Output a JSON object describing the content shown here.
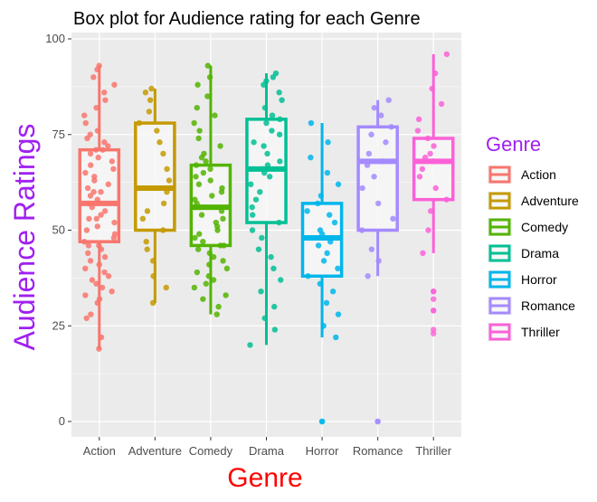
{
  "chart_data": {
    "type": "box",
    "title": "Box plot for Audience rating for each Genre",
    "xlabel": "Genre",
    "ylabel": "Audience Ratings",
    "ylim": [
      0,
      100
    ],
    "yticks": [
      0,
      25,
      50,
      75,
      100
    ],
    "categories": [
      "Action",
      "Adventure",
      "Comedy",
      "Drama",
      "Horror",
      "Romance",
      "Thriller"
    ],
    "legend": {
      "title": "Genre",
      "position": "right"
    },
    "grid": true,
    "colors": {
      "panel_bg": "#ebebeb",
      "grid": "#ffffff",
      "xlabel": "#ff0000",
      "ylabel_and_legend_title": "#a020f0",
      "box_fill": "#f7f7f7"
    },
    "series": [
      {
        "name": "Action",
        "color": "#f8766d",
        "q1": 47,
        "median": 57,
        "q3": 71,
        "whisker_low": 19,
        "whisker_high": 93,
        "outliers": [],
        "points": [
          19,
          22,
          27,
          28,
          31,
          32,
          33,
          34,
          35,
          36,
          37,
          38,
          39,
          40,
          41,
          42,
          43,
          44,
          45,
          46,
          46,
          47,
          48,
          49,
          50,
          51,
          52,
          53,
          53,
          54,
          55,
          56,
          57,
          57,
          58,
          59,
          60,
          60,
          61,
          62,
          63,
          64,
          65,
          66,
          67,
          68,
          69,
          70,
          71,
          71,
          72,
          73,
          74,
          75,
          76,
          78,
          80,
          82,
          84,
          86,
          88,
          90,
          92,
          93
        ]
      },
      {
        "name": "Adventure",
        "color": "#c49a00",
        "q1": 50,
        "median": 61,
        "q3": 78,
        "whisker_low": 31,
        "whisker_high": 87,
        "outliers": [],
        "points": [
          31,
          35,
          38,
          42,
          45,
          47,
          50,
          53,
          55,
          57,
          60,
          61,
          63,
          66,
          70,
          73,
          76,
          78,
          81,
          84,
          86,
          87
        ]
      },
      {
        "name": "Comedy",
        "color": "#53b400",
        "q1": 46,
        "median": 56,
        "q3": 67,
        "whisker_low": 28,
        "whisker_high": 93,
        "outliers": [],
        "points": [
          28,
          30,
          32,
          33,
          35,
          36,
          37,
          38,
          39,
          40,
          41,
          42,
          43,
          44,
          45,
          46,
          46,
          47,
          48,
          49,
          50,
          51,
          52,
          53,
          54,
          55,
          56,
          56,
          57,
          58,
          59,
          60,
          61,
          62,
          63,
          64,
          65,
          66,
          67,
          68,
          69,
          70,
          72,
          74,
          76,
          78,
          80,
          82,
          85,
          88,
          90,
          93
        ]
      },
      {
        "name": "Drama",
        "color": "#00c094",
        "q1": 52,
        "median": 66,
        "q3": 79,
        "whisker_low": 20,
        "whisker_high": 91,
        "outliers": [],
        "points": [
          20,
          24,
          27,
          30,
          34,
          37,
          40,
          43,
          45,
          48,
          50,
          52,
          54,
          56,
          58,
          60,
          62,
          64,
          65,
          66,
          67,
          68,
          70,
          72,
          73,
          75,
          76,
          78,
          79,
          80,
          82,
          84,
          86,
          88,
          89,
          90,
          91
        ]
      },
      {
        "name": "Horror",
        "color": "#00b6eb",
        "q1": 38,
        "median": 48,
        "q3": 57,
        "whisker_low": 22,
        "whisker_high": 78,
        "outliers": [
          0,
          0
        ],
        "points": [
          22,
          25,
          28,
          31,
          34,
          36,
          38,
          40,
          42,
          44,
          46,
          47,
          48,
          49,
          50,
          52,
          54,
          55,
          57,
          59,
          62,
          65,
          69,
          73,
          78
        ]
      },
      {
        "name": "Romance",
        "color": "#a58aff",
        "q1": 50,
        "median": 68,
        "q3": 77,
        "whisker_low": 38,
        "whisker_high": 84,
        "outliers": [
          0,
          0
        ],
        "points": [
          38,
          42,
          45,
          50,
          53,
          57,
          61,
          64,
          67,
          68,
          70,
          73,
          75,
          77,
          80,
          82,
          84
        ]
      },
      {
        "name": "Thriller",
        "color": "#fb61d7",
        "q1": 58,
        "median": 68,
        "q3": 74,
        "whisker_low": 44,
        "whisker_high": 96,
        "outliers": [
          23,
          24,
          29,
          29,
          32,
          34,
          34
        ],
        "points": [
          44,
          50,
          55,
          58,
          61,
          64,
          66,
          68,
          69,
          70,
          72,
          74,
          76,
          79,
          83,
          87,
          91,
          96
        ]
      }
    ]
  }
}
